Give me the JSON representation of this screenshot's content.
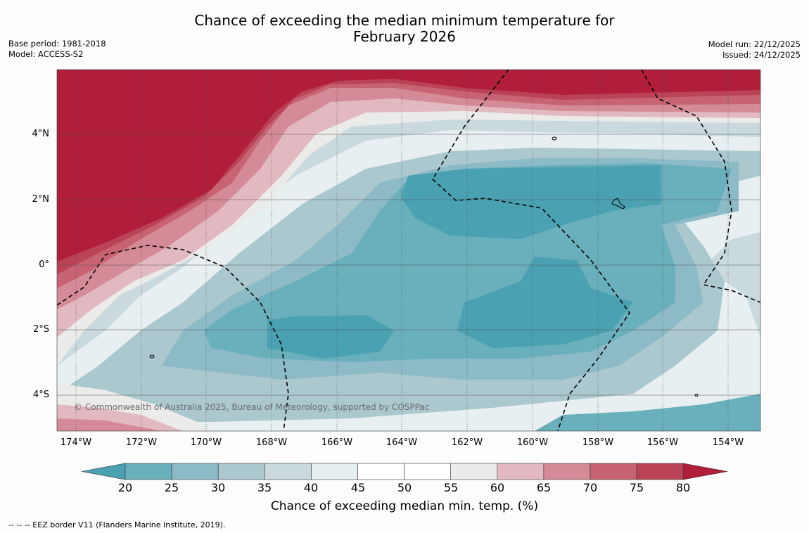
{
  "title_line1": "Chance of exceeding the median minimum temperature for",
  "title_line2": "February 2026",
  "base_period": "Base period: 1981-2018",
  "model": "Model: ACCESS-S2",
  "model_run": "Model run: 22/12/2025",
  "issued": "Issued: 24/12/2025",
  "copyright": "© Commonwealth of Australia 2025, Bureau of Meteorology, supported by COSPPac",
  "footer": "--  --  -- EEZ border V11 (Flanders Marine Institute, 2019).",
  "lat_labels": [
    "4°N",
    "2°N",
    "0°",
    "2°S",
    "4°S"
  ],
  "lon_labels": [
    "174°W",
    "172°W",
    "170°W",
    "168°W",
    "166°W",
    "164°W",
    "162°W",
    "160°W",
    "158°W",
    "156°W",
    "154°W"
  ],
  "colorbar": {
    "title": "Chance of exceeding median min. temp. (%)",
    "ticks": [
      "20",
      "25",
      "30",
      "35",
      "40",
      "45",
      "50",
      "55",
      "60",
      "65",
      "70",
      "75",
      "80"
    ],
    "colors": [
      "#4aa1b1",
      "#6aafbc",
      "#8cbbc7",
      "#abc8cf",
      "#cad9de",
      "#e8eff1",
      "#ffffff",
      "#ffffff",
      "#ebebea",
      "#e2b9c0",
      "#d58a97",
      "#c76372",
      "#bb4356",
      "#b01e3a"
    ]
  },
  "map_colors": {
    "red": "#b01e3a",
    "teal_deep": "#4aa1b1",
    "teal": "#6aafbc",
    "teal_mid": "#8cbbc7",
    "teal_light": "#abc8cf",
    "grey_blue": "#cad9de"
  }
}
